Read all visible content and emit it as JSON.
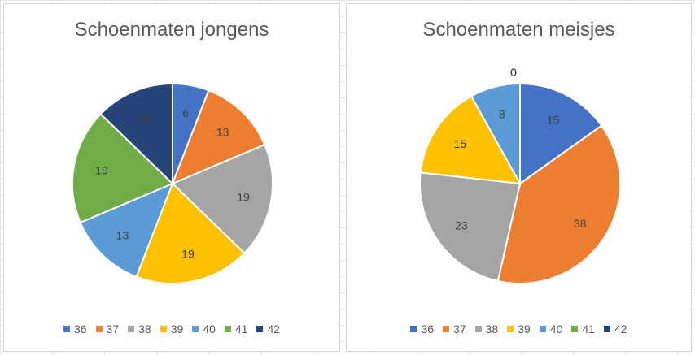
{
  "chart_data": [
    {
      "type": "pie",
      "title": "Schoenmaten jongens",
      "categories": [
        "36",
        "37",
        "38",
        "39",
        "40",
        "41",
        "42"
      ],
      "values": [
        6,
        13,
        19,
        19,
        13,
        19,
        13
      ],
      "data_labels": [
        "6",
        "13",
        "19",
        "19",
        "13",
        "19",
        "13"
      ],
      "colors": [
        "#4472C4",
        "#ED7D31",
        "#A5A5A5",
        "#FFC000",
        "#5B9BD5",
        "#70AD47",
        "#264478"
      ],
      "legend": "bottom"
    },
    {
      "type": "pie",
      "title": "Schoenmaten meisjes",
      "categories": [
        "36",
        "37",
        "38",
        "39",
        "40",
        "41",
        "42"
      ],
      "values": [
        15,
        38,
        23,
        15,
        8,
        0,
        0
      ],
      "data_labels": [
        "15",
        "38",
        "23",
        "15",
        "8",
        "0",
        "0"
      ],
      "colors": [
        "#4472C4",
        "#ED7D31",
        "#A5A5A5",
        "#FFC000",
        "#5B9BD5",
        "#70AD47",
        "#264478"
      ],
      "legend": "bottom"
    }
  ]
}
